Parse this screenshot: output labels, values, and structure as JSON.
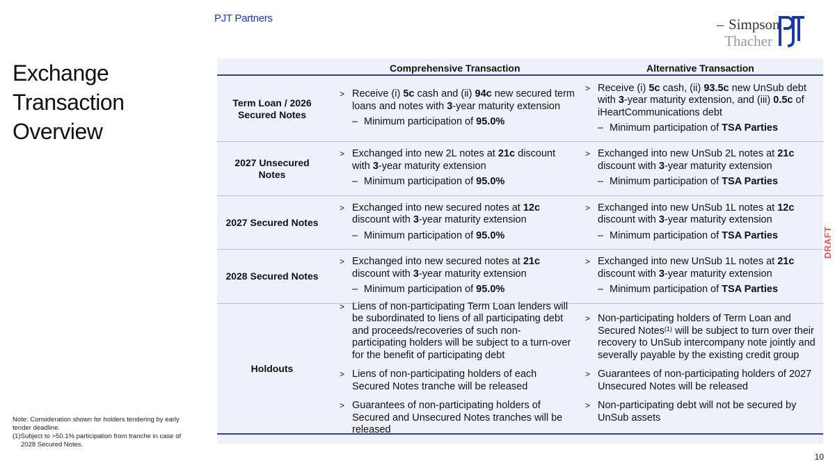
{
  "header": {
    "brand": "PJT Partners",
    "logo_simpson": "Simpson",
    "logo_thacher": "Thacher",
    "logo_pjt": "PJT"
  },
  "title_lines": [
    "Exchange",
    "Transaction",
    "Overview"
  ],
  "table": {
    "headers": [
      "Comprehensive Transaction",
      "Alternative Transaction"
    ],
    "rows": [
      {
        "label": "Term Loan / 2026 Secured Notes",
        "comp": [
          {
            "k": "b",
            "t": [
              [
                "Receive (i) ",
                0
              ],
              [
                "5c",
                1
              ],
              [
                " cash and (ii) ",
                0
              ],
              [
                "94c",
                1
              ],
              [
                " new secured term loans and notes with ",
                0
              ],
              [
                "3",
                1
              ],
              [
                "-year maturity extension",
                0
              ]
            ]
          },
          {
            "k": "s",
            "t": [
              [
                "Minimum participation of ",
                0
              ],
              [
                "95.0%",
                1
              ]
            ]
          }
        ],
        "alt": [
          {
            "k": "b",
            "t": [
              [
                "Receive (i) ",
                0
              ],
              [
                "5c",
                1
              ],
              [
                " cash, (ii) ",
                0
              ],
              [
                "93.5c",
                1
              ],
              [
                " new UnSub debt with ",
                0
              ],
              [
                "3",
                1
              ],
              [
                "-year maturity extension, and (iii) ",
                0
              ],
              [
                "0.5c",
                1
              ],
              [
                " of iHeartCommunications debt",
                0
              ]
            ]
          },
          {
            "k": "s",
            "t": [
              [
                "Minimum participation of ",
                0
              ],
              [
                "TSA Parties",
                1
              ]
            ]
          }
        ]
      },
      {
        "label": "2027 Unsecured Notes",
        "comp": [
          {
            "k": "b",
            "t": [
              [
                "Exchanged into new 2L notes at ",
                0
              ],
              [
                "21c",
                1
              ],
              [
                " discount with ",
                0
              ],
              [
                "3",
                1
              ],
              [
                "-year maturity extension",
                0
              ]
            ]
          },
          {
            "k": "s",
            "t": [
              [
                "Minimum participation of ",
                0
              ],
              [
                "95.0%",
                1
              ]
            ]
          }
        ],
        "alt": [
          {
            "k": "b",
            "t": [
              [
                "Exchanged into new UnSub 2L notes at ",
                0
              ],
              [
                "21c",
                1
              ],
              [
                " discount with ",
                0
              ],
              [
                "3",
                1
              ],
              [
                "-year maturity extension",
                0
              ]
            ]
          },
          {
            "k": "s",
            "t": [
              [
                "Minimum participation of ",
                0
              ],
              [
                "TSA Parties",
                1
              ]
            ]
          }
        ]
      },
      {
        "label": "2027 Secured Notes",
        "comp": [
          {
            "k": "b",
            "t": [
              [
                "Exchanged into new secured notes at ",
                0
              ],
              [
                "12c",
                1
              ],
              [
                " discount with ",
                0
              ],
              [
                "3",
                1
              ],
              [
                "-year maturity extension",
                0
              ]
            ]
          },
          {
            "k": "s",
            "t": [
              [
                "Minimum participation of ",
                0
              ],
              [
                "95.0%",
                1
              ]
            ]
          }
        ],
        "alt": [
          {
            "k": "b",
            "t": [
              [
                "Exchanged into new UnSub 1L notes at ",
                0
              ],
              [
                "12c",
                1
              ],
              [
                " discount with ",
                0
              ],
              [
                "3",
                1
              ],
              [
                "-year maturity extension",
                0
              ]
            ]
          },
          {
            "k": "s",
            "t": [
              [
                "Minimum participation of ",
                0
              ],
              [
                "TSA Parties",
                1
              ]
            ]
          }
        ]
      },
      {
        "label": "2028 Secured Notes",
        "comp": [
          {
            "k": "b",
            "t": [
              [
                "Exchanged into new secured notes at ",
                0
              ],
              [
                "21c",
                1
              ],
              [
                " discount with ",
                0
              ],
              [
                "3",
                1
              ],
              [
                "-year maturity extension",
                0
              ]
            ]
          },
          {
            "k": "s",
            "t": [
              [
                "Minimum participation of ",
                0
              ],
              [
                "95.0%",
                1
              ]
            ]
          }
        ],
        "alt": [
          {
            "k": "b",
            "t": [
              [
                "Exchanged into new UnSub 1L notes at ",
                0
              ],
              [
                "21c",
                1
              ],
              [
                " discount with ",
                0
              ],
              [
                "3",
                1
              ],
              [
                "-year maturity extension",
                0
              ]
            ]
          },
          {
            "k": "s",
            "t": [
              [
                "Minimum participation of ",
                0
              ],
              [
                "TSA Parties",
                1
              ]
            ]
          }
        ]
      },
      {
        "label": "Holdouts",
        "comp": [
          {
            "k": "b",
            "t": [
              [
                "Liens of non-participating Term Loan lenders will be subordinated to liens of all participating debt and proceeds/recoveries of such non-participating holders will be subject to a turn-over for the benefit of participating debt",
                0
              ]
            ]
          },
          {
            "k": "b",
            "t": [
              [
                "Liens of non-participating holders of each Secured Notes tranche will be released",
                0
              ]
            ]
          },
          {
            "k": "b",
            "t": [
              [
                "Guarantees of non-participating holders of Secured and Unsecured Notes tranches will be released",
                0
              ]
            ]
          }
        ],
        "alt": [
          {
            "k": "b",
            "t": [
              [
                "Non-participating holders of Term Loan and Secured Notes",
                0
              ],
              [
                "(1)",
                2
              ],
              [
                " will be subject to turn over their recovery to UnSub intercompany note jointly and severally payable by the existing credit group",
                0
              ]
            ]
          },
          {
            "k": "b",
            "t": [
              [
                "Guarantees of non-participating holders of 2027 Unsecured Notes will be released",
                0
              ]
            ]
          },
          {
            "k": "b",
            "t": [
              [
                "Non-participating debt will not be secured by UnSub assets",
                0
              ]
            ]
          }
        ]
      }
    ]
  },
  "notes": [
    "Note: Consideration shown for holders tendering by early tender deadline.",
    "(1)Subject to >50.1% participation from tranche in case of 2028 Secured Notes."
  ],
  "draft": "DRAFT",
  "page_number": "10",
  "colors": {
    "brand": "#1a3aa8",
    "table_bg": "#eef0fa",
    "rule": "#2b3f8f",
    "draft": "#e15a5a"
  }
}
